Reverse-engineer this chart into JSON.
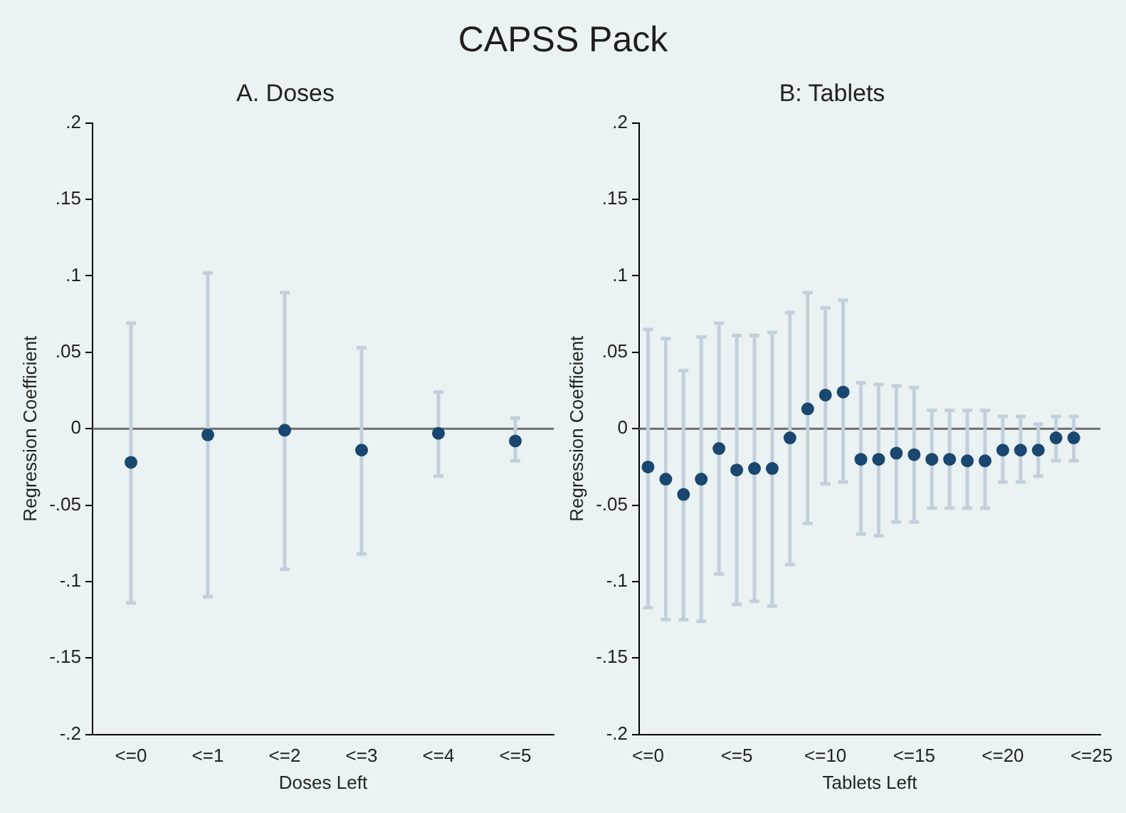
{
  "chart_data": [
    {
      "type": "scatter",
      "title": "CAPSS Pack",
      "subtitle": "A. Doses",
      "xlabel": "Doses Left",
      "ylabel": "Regression Coefficient",
      "categories": [
        "<=0",
        "<=1",
        "<=2",
        "<=3",
        "<=4",
        "<=5"
      ],
      "series": [
        {
          "color": "#1a476f",
          "values": [
            -0.022,
            -0.004,
            -0.001,
            -0.014,
            -0.003,
            -0.008
          ],
          "errors": [
            [
              -0.114,
              0.069
            ],
            [
              -0.11,
              0.102
            ],
            [
              -0.092,
              0.089
            ],
            [
              -0.082,
              0.053
            ],
            [
              -0.031,
              0.024
            ],
            [
              -0.021,
              0.007
            ]
          ]
        }
      ],
      "ylim": [
        -0.2,
        0.2
      ],
      "yticks": [
        {
          "value": -0.2,
          "label": "-.2"
        },
        {
          "value": -0.15,
          "label": "-.15"
        },
        {
          "value": -0.1,
          "label": "-.1"
        },
        {
          "value": -0.05,
          "label": "-.05"
        },
        0,
        {
          "value": 0.05,
          "label": ".05"
        },
        {
          "value": 0.1,
          "label": ".1"
        },
        {
          "value": 0.15,
          "label": ".15"
        },
        {
          "value": 0.2,
          "label": ".2"
        }
      ],
      "ref_lines": [
        {
          "axis": "y",
          "value": 0,
          "color": "#6e6e6e"
        }
      ],
      "grid": false,
      "legend": false,
      "marker": "circle"
    },
    {
      "type": "scatter",
      "subtitle": "B: Tablets",
      "xlabel": "Tablets Left",
      "ylabel": "Regression Coefficient",
      "categories": [
        "<=0",
        null,
        null,
        null,
        null,
        "<=5",
        null,
        null,
        null,
        null,
        "<=10",
        null,
        null,
        null,
        null,
        "<=15",
        null,
        null,
        null,
        null,
        "<=20",
        null,
        null,
        null,
        null,
        "<=25"
      ],
      "series": [
        {
          "color": "#1a476f",
          "values": [
            -0.025,
            -0.033,
            -0.043,
            -0.033,
            -0.013,
            -0.027,
            -0.026,
            -0.026,
            -0.006,
            0.013,
            0.022,
            0.024,
            -0.02,
            -0.02,
            -0.016,
            -0.017,
            -0.02,
            -0.02,
            -0.021,
            -0.021,
            -0.014,
            -0.014,
            -0.014,
            -0.006,
            -0.006,
            null
          ],
          "errors": [
            [
              -0.117,
              0.065
            ],
            [
              -0.125,
              0.059
            ],
            [
              -0.125,
              0.038
            ],
            [
              -0.126,
              0.06
            ],
            [
              -0.095,
              0.069
            ],
            [
              -0.115,
              0.061
            ],
            [
              -0.113,
              0.061
            ],
            [
              -0.116,
              0.063
            ],
            [
              -0.089,
              0.076
            ],
            [
              -0.062,
              0.089
            ],
            [
              -0.036,
              0.079
            ],
            [
              -0.035,
              0.084
            ],
            [
              -0.069,
              0.03
            ],
            [
              -0.07,
              0.029
            ],
            [
              -0.061,
              0.028
            ],
            [
              -0.061,
              0.027
            ],
            [
              -0.052,
              0.012
            ],
            [
              -0.052,
              0.012
            ],
            [
              -0.052,
              0.012
            ],
            [
              -0.052,
              0.012
            ],
            [
              -0.035,
              0.008
            ],
            [
              -0.035,
              0.008
            ],
            [
              -0.031,
              0.003
            ],
            [
              -0.021,
              0.008
            ],
            [
              -0.021,
              0.008
            ],
            null
          ]
        }
      ],
      "ylim": [
        -0.2,
        0.2
      ],
      "yticks": [
        {
          "value": -0.2,
          "label": "-.2"
        },
        {
          "value": -0.15,
          "label": "-.15"
        },
        {
          "value": -0.1,
          "label": "-.1"
        },
        {
          "value": -0.05,
          "label": "-.05"
        },
        0,
        {
          "value": 0.05,
          "label": ".05"
        },
        {
          "value": 0.1,
          "label": ".1"
        },
        {
          "value": 0.15,
          "label": ".15"
        },
        {
          "value": 0.2,
          "label": ".2"
        }
      ],
      "ref_lines": [
        {
          "axis": "y",
          "value": 0,
          "color": "#6e6e6e"
        }
      ],
      "grid": false,
      "legend": false,
      "marker": "circle"
    }
  ]
}
